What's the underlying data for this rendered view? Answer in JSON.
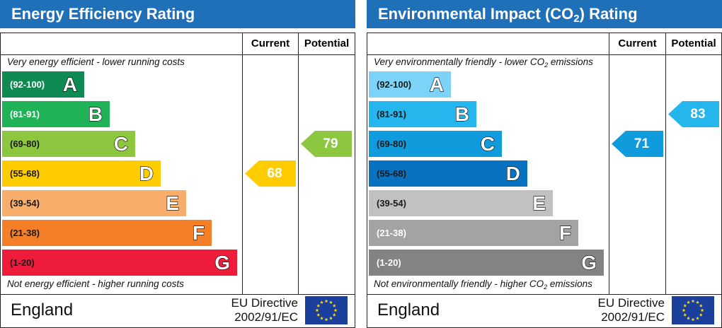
{
  "energy": {
    "title": "Energy Efficiency Rating",
    "col_current": "Current",
    "col_potential": "Potential",
    "top_note": "Very energy efficient - lower running costs",
    "bottom_note": "Not energy efficient - higher running costs",
    "bands": [
      {
        "range": "(92-100)",
        "letter": "A",
        "color": "#0f8a53",
        "range_color": "#ffffff"
      },
      {
        "range": "(81-91)",
        "letter": "B",
        "color": "#1fb256",
        "range_color": "#ffffff"
      },
      {
        "range": "(69-80)",
        "letter": "C",
        "color": "#8dc63f",
        "range_color": "#1a1a1a"
      },
      {
        "range": "(55-68)",
        "letter": "D",
        "color": "#ffcc00",
        "range_color": "#1a1a1a"
      },
      {
        "range": "(39-54)",
        "letter": "E",
        "color": "#f7ae6a",
        "range_color": "#1a1a1a"
      },
      {
        "range": "(21-38)",
        "letter": "F",
        "color": "#f47f26",
        "range_color": "#1a1a1a"
      },
      {
        "range": "(1-20)",
        "letter": "G",
        "color": "#ee1c3a",
        "range_color": "#1a1a1a"
      }
    ],
    "current": {
      "value": "68",
      "band": "D",
      "color": "#ffcc00"
    },
    "potential": {
      "value": "79",
      "band": "C",
      "color": "#8dc63f"
    },
    "country": "England",
    "directive_line1": "EU Directive",
    "directive_line2": "2002/91/EC"
  },
  "environment": {
    "title_pre": "Environmental Impact (CO",
    "title_sub": "2",
    "title_post": ") Rating",
    "col_current": "Current",
    "col_potential": "Potential",
    "top_note_pre": "Very environmentally friendly - lower CO",
    "top_note_sub": "2",
    "top_note_post": " emissions",
    "bottom_note_pre": "Not environmentally friendly - higher CO",
    "bottom_note_sub": "2",
    "bottom_note_post": " emissions",
    "bands": [
      {
        "range": "(92-100)",
        "letter": "A",
        "color": "#7dd3f7",
        "range_color": "#1a1a1a"
      },
      {
        "range": "(81-91)",
        "letter": "B",
        "color": "#25b6ee",
        "range_color": "#1a1a1a"
      },
      {
        "range": "(69-80)",
        "letter": "C",
        "color": "#0f9bdc",
        "range_color": "#1a1a1a"
      },
      {
        "range": "(55-68)",
        "letter": "D",
        "color": "#0871c0",
        "range_color": "#1a1a1a"
      },
      {
        "range": "(39-54)",
        "letter": "E",
        "color": "#c1c1c1",
        "range_color": "#1a1a1a"
      },
      {
        "range": "(21-38)",
        "letter": "F",
        "color": "#a3a3a3",
        "range_color": "#ffffff"
      },
      {
        "range": "(1-20)",
        "letter": "G",
        "color": "#838383",
        "range_color": "#ffffff"
      }
    ],
    "current": {
      "value": "71",
      "band": "C",
      "color": "#0f9bdc"
    },
    "potential": {
      "value": "83",
      "band": "B",
      "color": "#25b6ee"
    },
    "country": "England",
    "directive_line1": "EU Directive",
    "directive_line2": "2002/91/EC"
  }
}
